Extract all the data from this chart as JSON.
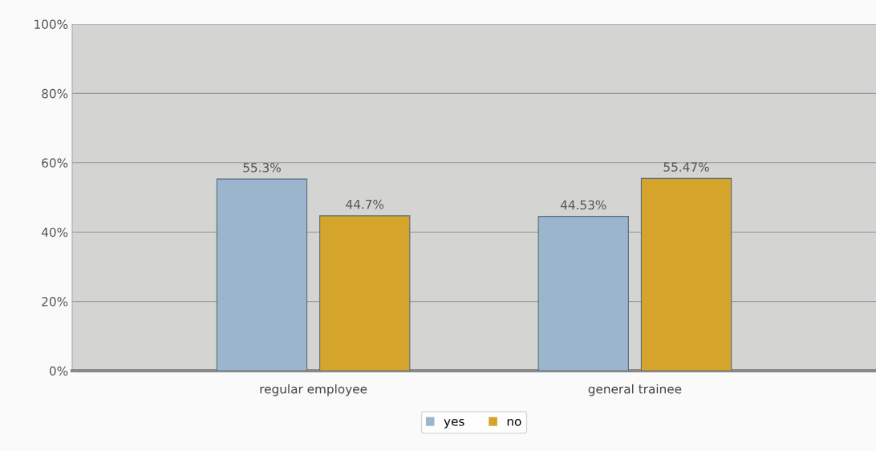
{
  "chart_data": {
    "type": "bar",
    "categories": [
      "regular employee",
      "general trainee"
    ],
    "series": [
      {
        "name": "yes",
        "color": "#9bb5cc",
        "values": [
          55.3,
          44.53
        ],
        "value_labels": [
          "55.3%",
          "44.53%"
        ]
      },
      {
        "name": "no",
        "color": "#d4a52a",
        "values": [
          44.7,
          55.47
        ],
        "value_labels": [
          "44.7%",
          "55.47%"
        ]
      }
    ],
    "ylim": [
      0,
      100
    ],
    "yticks": [
      {
        "value": 0,
        "label": "0%"
      },
      {
        "value": 20,
        "label": "20%"
      },
      {
        "value": 40,
        "label": "40%"
      },
      {
        "value": 60,
        "label": "60%"
      },
      {
        "value": 80,
        "label": "80%"
      },
      {
        "value": 100,
        "label": "100%"
      }
    ],
    "grid": "y",
    "legend": "bottom"
  }
}
